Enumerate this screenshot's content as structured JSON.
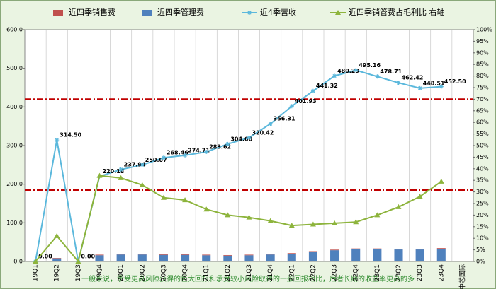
{
  "chart_data": {
    "type": "bar_line",
    "categories": [
      "19Q1",
      "19Q2",
      "19Q3",
      "19Q4",
      "20Q1",
      "20Q2",
      "20Q3",
      "20Q4",
      "21Q1",
      "21Q2",
      "21Q3",
      "21Q4",
      "22Q1",
      "22Q2",
      "22Q3",
      "22Q4",
      "23Q1",
      "23Q2",
      "23Q3",
      "23Q4",
      "中芯国际"
    ],
    "series": [
      {
        "name": "近四季销售费",
        "kind": "bar",
        "color": "#c0504d",
        "values": [
          0,
          1,
          0,
          1.5,
          1.5,
          1.5,
          1.5,
          1.5,
          1.5,
          1.5,
          1.5,
          1.5,
          1.5,
          1.5,
          1.5,
          1.5,
          1.5,
          1.5,
          1.5,
          1.5,
          null
        ]
      },
      {
        "name": "近四季管理费",
        "kind": "bar",
        "color": "#4f81bd",
        "values": [
          0,
          8,
          0,
          16,
          18,
          18,
          17,
          17,
          16,
          15,
          16,
          18,
          20,
          25,
          29,
          32,
          32,
          31,
          31,
          33,
          null
        ]
      },
      {
        "name": "近4季营收",
        "kind": "line",
        "color": "#5bb8dc",
        "marker": "star",
        "values": [
          0,
          314.5,
          0,
          220.18,
          237.94,
          250.07,
          268.46,
          274.71,
          283.62,
          304,
          320.42,
          356.31,
          401.93,
          441.32,
          480.23,
          495.16,
          478.71,
          462.42,
          448.51,
          452.5,
          null
        ],
        "value_labels": [
          "0.00",
          "314.50",
          "0.00",
          "220.18",
          "237.94",
          "250.07",
          "268.46",
          "274.71",
          "283.62",
          "304.00",
          "320.42",
          "356.31",
          "401.93",
          "441.32",
          "480.23",
          "495.16",
          "478.71",
          "462.42",
          "448.51",
          "452.50",
          null
        ]
      },
      {
        "name": "近四季销管费占毛利比 右轴",
        "kind": "line",
        "axis": "y2",
        "color": "#8db43c",
        "marker": "triangle",
        "values": [
          0,
          11,
          0,
          37,
          36,
          33,
          27.5,
          26.5,
          22.5,
          20,
          19,
          17.5,
          15.5,
          16,
          16.5,
          17,
          20,
          23.5,
          28,
          34.5,
          null
        ]
      }
    ],
    "hlines": [
      420,
      185
    ],
    "hline_color": "#c00000",
    "ylim": [
      0,
      600
    ],
    "yticks": [
      {
        "value": 0,
        "label": "0.0"
      },
      {
        "value": 100,
        "label": "100.0"
      },
      {
        "value": 200,
        "label": "200.0"
      },
      {
        "value": 300,
        "label": "300.0"
      },
      {
        "value": 400,
        "label": "400.0"
      },
      {
        "value": 500,
        "label": "500.0"
      },
      {
        "value": 600,
        "label": "600.0"
      }
    ],
    "y2lim": [
      0,
      100
    ],
    "y2ticks": [
      {
        "value": 0,
        "label": "0%"
      },
      {
        "value": 5,
        "label": "5%"
      },
      {
        "value": 10,
        "label": "10%"
      },
      {
        "value": 15,
        "label": "15%"
      },
      {
        "value": 20,
        "label": "20%"
      },
      {
        "value": 25,
        "label": "25%"
      },
      {
        "value": 30,
        "label": "30%"
      },
      {
        "value": 35,
        "label": "35%"
      },
      {
        "value": 40,
        "label": "40%"
      },
      {
        "value": 45,
        "label": "45%"
      },
      {
        "value": 50,
        "label": "50%"
      },
      {
        "value": 55,
        "label": "55%"
      },
      {
        "value": 60,
        "label": "60%"
      },
      {
        "value": 65,
        "label": "65%"
      },
      {
        "value": 70,
        "label": "70%"
      },
      {
        "value": 75,
        "label": "75%"
      },
      {
        "value": 80,
        "label": "80%"
      },
      {
        "value": 85,
        "label": "85%"
      },
      {
        "value": 90,
        "label": "90%"
      },
      {
        "value": 95,
        "label": "95%"
      },
      {
        "value": 100,
        "label": "100%"
      }
    ],
    "grid": "x",
    "annotation": "一般来说，承受更高风险获得的巨大回报和承受较小风险取得的一般回报相比，后者长期的收益率更高的多"
  }
}
